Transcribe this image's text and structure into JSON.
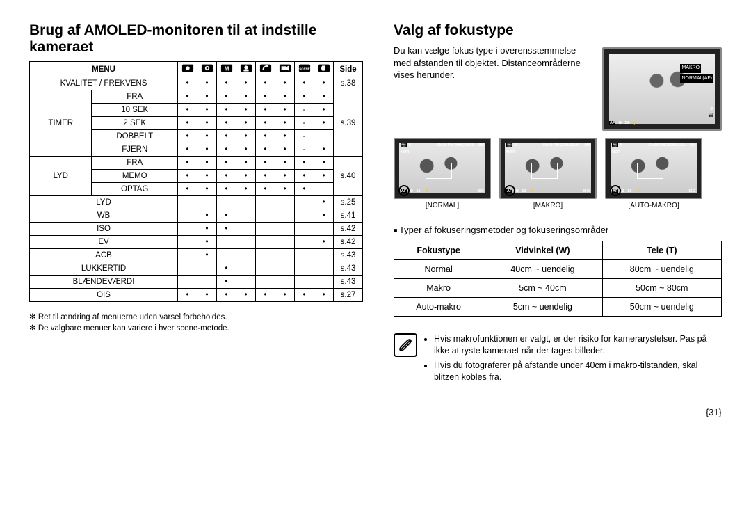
{
  "left": {
    "title": "Brug af AMOLED-monitoren til at indstille kameraet",
    "menu_head": "MENU",
    "side_head": "Side",
    "mode_icons": [
      "camera",
      "camera-p",
      "M",
      "face",
      "moon",
      "video",
      "scene",
      "sound"
    ],
    "rows": [
      {
        "label": "KVALITET / FREKVENS",
        "span": false,
        "cells": [
          "d",
          "d",
          "d",
          "d",
          "d",
          "d",
          "d",
          "d"
        ],
        "page": "s.38"
      },
      {
        "group": "TIMER",
        "label": "FRA",
        "cells": [
          "d",
          "d",
          "d",
          "d",
          "d",
          "d",
          "d",
          "d"
        ],
        "page": ""
      },
      {
        "label": "10 SEK",
        "cells": [
          "d",
          "d",
          "d",
          "d",
          "d",
          "d",
          "-",
          "d"
        ],
        "page": ""
      },
      {
        "label": "2 SEK",
        "cells": [
          "d",
          "d",
          "d",
          "d",
          "d",
          "d",
          "-",
          "d"
        ],
        "page": "s.39"
      },
      {
        "label": "DOBBELT",
        "cells": [
          "d",
          "d",
          "d",
          "d",
          "d",
          "d",
          "-",
          ""
        ],
        "page": ""
      },
      {
        "label": "FJERN",
        "cells": [
          "d",
          "d",
          "d",
          "d",
          "d",
          "d",
          "-",
          "d"
        ],
        "page": ""
      },
      {
        "group": "LYD",
        "label": "FRA",
        "cells": [
          "d",
          "d",
          "d",
          "d",
          "d",
          "d",
          "d",
          "d"
        ],
        "page": ""
      },
      {
        "label": "MEMO",
        "cells": [
          "d",
          "d",
          "d",
          "d",
          "d",
          "d",
          "d",
          "d"
        ],
        "page": "s.40"
      },
      {
        "label": "OPTAG",
        "cells": [
          "d",
          "d",
          "d",
          "d",
          "d",
          "d",
          "d",
          ""
        ],
        "page": ""
      },
      {
        "label": "LYD",
        "span": false,
        "cells": [
          "",
          "",
          "",
          "",
          "",
          "",
          "",
          "d"
        ],
        "page": "s.25"
      },
      {
        "label": "WB",
        "span": false,
        "cells": [
          "",
          "d",
          "d",
          "",
          "",
          "",
          "",
          "d"
        ],
        "page": "s.41"
      },
      {
        "label": "ISO",
        "span": false,
        "cells": [
          "",
          "d",
          "d",
          "",
          "",
          "",
          "",
          ""
        ],
        "page": "s.42"
      },
      {
        "label": "EV",
        "span": false,
        "cells": [
          "",
          "d",
          "",
          "",
          "",
          "",
          "",
          "d"
        ],
        "page": "s.42"
      },
      {
        "label": "ACB",
        "span": false,
        "cells": [
          "",
          "d",
          "",
          "",
          "",
          "",
          "",
          ""
        ],
        "page": "s.43"
      },
      {
        "label": "LUKKERTID",
        "span": false,
        "cells": [
          "",
          "",
          "d",
          "",
          "",
          "",
          "",
          ""
        ],
        "page": "s.43"
      },
      {
        "label": "BLÆNDEVÆRDI",
        "span": false,
        "cells": [
          "",
          "",
          "d",
          "",
          "",
          "",
          "",
          ""
        ],
        "page": "s.43"
      },
      {
        "label": "OIS",
        "span": false,
        "cells": [
          "d",
          "d",
          "d",
          "d",
          "d",
          "d",
          "d",
          "d"
        ],
        "page": "s.27"
      }
    ],
    "group_labels": {
      "timer": "TIMER",
      "lyd": "LYD"
    },
    "notes": [
      "Ret til ændring af menuerne uden varsel forbeholdes.",
      "De valgbare menuer kan variere i hver scene-metode."
    ]
  },
  "right": {
    "title": "Valg af fokustype",
    "desc": "Du kan vælge fokus type i overensstemmelse med afstanden til objektet. Distanceområderne vises herunder.",
    "big_preview": {
      "side_labels": [
        "MAKRO",
        "NORMAL(AF)"
      ],
      "af_icon": "AF",
      "bottom_icons": [
        "AF",
        "⚙",
        "10-",
        "⚡"
      ]
    },
    "previews": [
      {
        "caption": "[NORMAL]",
        "top": "01:00 PM 2008.01.01",
        "count": "5",
        "nor": "NOR",
        "res": "8M",
        "iso": "ISO",
        "circle_bl": true
      },
      {
        "caption": "[MAKRO]",
        "top": "01:00 PM 2008.01.01",
        "count": "5",
        "nor": "NOR",
        "res": "8M",
        "iso": "ISO",
        "circle_bl": true
      },
      {
        "caption": "[AUTO-MAKRO]",
        "top": "01:00 PM 2008.01.01",
        "count": "5",
        "nor": "NOR",
        "res": "8M",
        "iso": "ISO",
        "circle_bl": true
      }
    ],
    "subheading": "Typer af fokuseringsmetoder og fokuseringsområder",
    "focus_table": {
      "headers": [
        "Fokustype",
        "Vidvinkel (W)",
        "Tele (T)"
      ],
      "rows": [
        [
          "Normal",
          "40cm ~ uendelig",
          "80cm ~ uendelig"
        ],
        [
          "Makro",
          "5cm ~ 40cm",
          "50cm ~ 80cm"
        ],
        [
          "Auto-makro",
          "5cm ~ uendelig",
          "50cm ~ uendelig"
        ]
      ]
    },
    "notebox": [
      "Hvis makrofunktionen er valgt, er der risiko for kamerarystelser. Pas på ikke at ryste kameraet når der tages billeder.",
      "Hvis du fotograferer på afstande under 40cm i makro-tilstanden, skal blitzen kobles fra."
    ]
  },
  "page_number": "{31}"
}
